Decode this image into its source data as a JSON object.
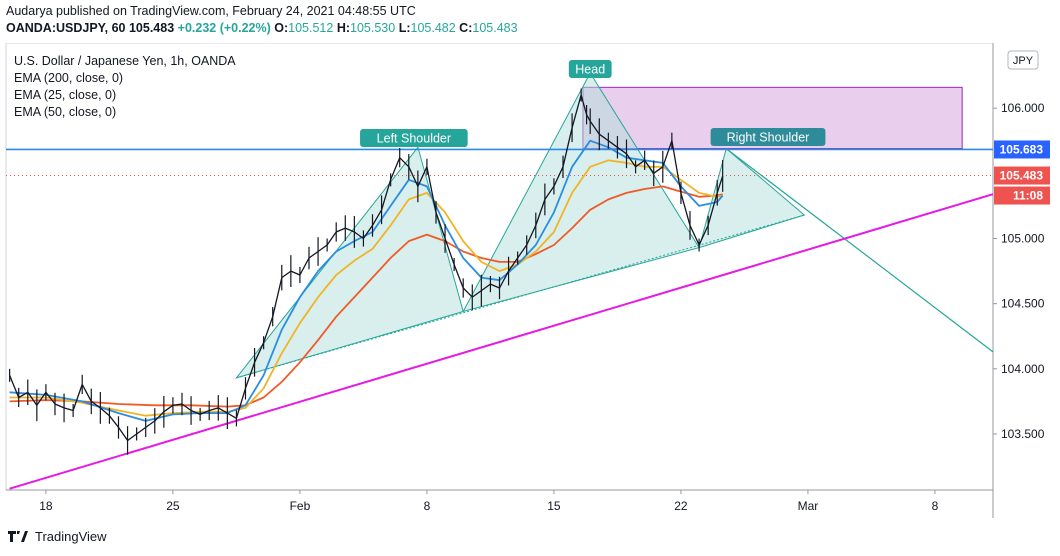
{
  "header": {
    "line1": "Audarya published on TradingView.com, February 24, 2021 04:48:55 UTC",
    "symbol": "OANDA:USDJPY, 60",
    "last": "105.483",
    "change": "+0.232 (+0.22%)",
    "open_label": "O:",
    "open": "105.512",
    "high_label": "H:",
    "high": "105.530",
    "low_label": "L:",
    "low": "105.482",
    "close_label": "C:",
    "close": "105.483"
  },
  "legend": {
    "title": "U.S. Dollar / Japanese Yen, 1h, OANDA",
    "ema200": "EMA (200, close, 0)",
    "ema25": "EMA (25, close, 0)",
    "ema50": "EMA (50, close, 0)"
  },
  "currency_badge": "JPY",
  "footer": {
    "brand": "TradingView"
  },
  "colors": {
    "ema200": "#f05a28",
    "ema25": "#2a8de0",
    "ema50": "#f0b429",
    "trendline": "#e619e6",
    "neckline": "#2b8ae6",
    "pattern_fill": "#b2dfdb",
    "pattern_line": "#26a69a",
    "zone_fill": "#e1bee7",
    "zone_line": "#9c27b0",
    "label_bg": "#26a69a",
    "label_bg_right": "#2e8b9a",
    "price_blue": "#2962ff",
    "price_red": "#ef5350"
  },
  "chart_data": {
    "type": "line",
    "title": "U.S. Dollar / Japanese Yen, 1h, OANDA",
    "xlabel": "",
    "ylabel": "",
    "x_unit": "days since Jan 14, 2021",
    "x_ticks": [
      {
        "label": "18",
        "x": 4
      },
      {
        "label": "25",
        "x": 11
      },
      {
        "label": "Feb",
        "x": 18
      },
      {
        "label": "8",
        "x": 25
      },
      {
        "label": "15",
        "x": 32
      },
      {
        "label": "22",
        "x": 39
      },
      {
        "label": "Mar",
        "x": 46
      },
      {
        "label": "8",
        "x": 53
      }
    ],
    "xlim": [
      1.8,
      56.2
    ],
    "y_ticks": [
      "103.500",
      "104.000",
      "104.500",
      "105.000",
      "106.000"
    ],
    "ylim": [
      103.07,
      106.5
    ],
    "price_labels": [
      {
        "value": "105.683",
        "kind": "level"
      },
      {
        "value": "105.483",
        "kind": "last"
      },
      {
        "value": "11:08",
        "kind": "countdown"
      }
    ],
    "price_path": [
      [
        2.0,
        103.95
      ],
      [
        2.5,
        103.78
      ],
      [
        3.0,
        103.82
      ],
      [
        3.5,
        103.72
      ],
      [
        4.0,
        103.82
      ],
      [
        4.5,
        103.73
      ],
      [
        5.0,
        103.7
      ],
      [
        5.5,
        103.68
      ],
      [
        6.0,
        103.88
      ],
      [
        6.5,
        103.75
      ],
      [
        7.0,
        103.7
      ],
      [
        7.5,
        103.64
      ],
      [
        8.0,
        103.55
      ],
      [
        8.5,
        103.45
      ],
      [
        9.0,
        103.5
      ],
      [
        9.5,
        103.55
      ],
      [
        10.0,
        103.6
      ],
      [
        10.5,
        103.67
      ],
      [
        11.0,
        103.72
      ],
      [
        11.5,
        103.73
      ],
      [
        12.0,
        103.68
      ],
      [
        12.5,
        103.65
      ],
      [
        13.0,
        103.68
      ],
      [
        13.5,
        103.7
      ],
      [
        14.0,
        103.66
      ],
      [
        14.5,
        103.62
      ],
      [
        15.0,
        103.85
      ],
      [
        15.5,
        104.05
      ],
      [
        16.0,
        104.2
      ],
      [
        16.5,
        104.4
      ],
      [
        17.0,
        104.7
      ],
      [
        17.5,
        104.75
      ],
      [
        18.0,
        104.72
      ],
      [
        18.5,
        104.85
      ],
      [
        19.0,
        104.9
      ],
      [
        19.5,
        104.95
      ],
      [
        20.0,
        105.05
      ],
      [
        20.5,
        105.08
      ],
      [
        21.0,
        105.05
      ],
      [
        21.5,
        105.0
      ],
      [
        22.0,
        105.1
      ],
      [
        22.5,
        105.22
      ],
      [
        23.0,
        105.45
      ],
      [
        23.5,
        105.62
      ],
      [
        24.0,
        105.55
      ],
      [
        24.5,
        105.4
      ],
      [
        25.0,
        105.55
      ],
      [
        25.5,
        105.2
      ],
      [
        26.0,
        105.0
      ],
      [
        26.5,
        104.8
      ],
      [
        27.0,
        104.62
      ],
      [
        27.5,
        104.55
      ],
      [
        28.0,
        104.6
      ],
      [
        28.5,
        104.65
      ],
      [
        29.0,
        104.62
      ],
      [
        29.5,
        104.75
      ],
      [
        30.0,
        104.85
      ],
      [
        30.5,
        104.95
      ],
      [
        31.0,
        105.1
      ],
      [
        31.5,
        105.3
      ],
      [
        32.0,
        105.4
      ],
      [
        32.5,
        105.55
      ],
      [
        33.0,
        105.85
      ],
      [
        33.5,
        106.1
      ],
      [
        33.8,
        105.95
      ],
      [
        34.0,
        105.9
      ],
      [
        34.5,
        105.8
      ],
      [
        35.0,
        105.75
      ],
      [
        35.5,
        105.7
      ],
      [
        36.0,
        105.65
      ],
      [
        36.5,
        105.55
      ],
      [
        37.0,
        105.6
      ],
      [
        37.5,
        105.5
      ],
      [
        38.0,
        105.55
      ],
      [
        38.5,
        105.75
      ],
      [
        39.0,
        105.35
      ],
      [
        39.5,
        105.1
      ],
      [
        40.0,
        104.95
      ],
      [
        40.5,
        105.1
      ],
      [
        41.0,
        105.35
      ],
      [
        41.3,
        105.48
      ]
    ],
    "series": [
      {
        "name": "EMA (25, close, 0)",
        "values": [
          [
            2,
            103.82
          ],
          [
            4,
            103.8
          ],
          [
            6,
            103.75
          ],
          [
            8,
            103.66
          ],
          [
            9.5,
            103.6
          ],
          [
            11,
            103.65
          ],
          [
            12.5,
            103.66
          ],
          [
            14,
            103.66
          ],
          [
            15,
            103.72
          ],
          [
            16,
            103.95
          ],
          [
            17,
            104.3
          ],
          [
            18,
            104.55
          ],
          [
            19,
            104.75
          ],
          [
            20,
            104.9
          ],
          [
            21,
            104.98
          ],
          [
            22,
            105.05
          ],
          [
            23,
            105.25
          ],
          [
            24,
            105.45
          ],
          [
            25,
            105.4
          ],
          [
            26,
            105.1
          ],
          [
            27,
            104.85
          ],
          [
            28,
            104.7
          ],
          [
            29,
            104.68
          ],
          [
            30,
            104.8
          ],
          [
            31,
            104.95
          ],
          [
            32,
            105.2
          ],
          [
            33,
            105.55
          ],
          [
            34,
            105.75
          ],
          [
            35,
            105.7
          ],
          [
            36,
            105.62
          ],
          [
            37,
            105.6
          ],
          [
            38,
            105.58
          ],
          [
            39,
            105.4
          ],
          [
            40,
            105.25
          ],
          [
            41,
            105.28
          ],
          [
            41.3,
            105.33
          ]
        ]
      },
      {
        "name": "EMA (50, close, 0)",
        "values": [
          [
            2,
            103.78
          ],
          [
            4,
            103.78
          ],
          [
            6,
            103.74
          ],
          [
            8,
            103.68
          ],
          [
            9.5,
            103.64
          ],
          [
            11,
            103.66
          ],
          [
            12.5,
            103.67
          ],
          [
            14,
            103.67
          ],
          [
            15,
            103.7
          ],
          [
            16,
            103.85
          ],
          [
            17,
            104.12
          ],
          [
            18,
            104.35
          ],
          [
            19,
            104.55
          ],
          [
            20,
            104.72
          ],
          [
            21,
            104.83
          ],
          [
            22,
            104.92
          ],
          [
            23,
            105.1
          ],
          [
            24,
            105.3
          ],
          [
            25,
            105.35
          ],
          [
            26,
            105.2
          ],
          [
            27,
            104.98
          ],
          [
            28,
            104.82
          ],
          [
            29,
            104.75
          ],
          [
            30,
            104.8
          ],
          [
            31,
            104.9
          ],
          [
            32,
            105.05
          ],
          [
            33,
            105.35
          ],
          [
            34,
            105.55
          ],
          [
            35,
            105.6
          ],
          [
            36,
            105.58
          ],
          [
            37,
            105.55
          ],
          [
            38,
            105.55
          ],
          [
            39,
            105.45
          ],
          [
            40,
            105.35
          ],
          [
            41,
            105.32
          ],
          [
            41.3,
            105.33
          ]
        ]
      },
      {
        "name": "EMA (200, close, 0)",
        "values": [
          [
            2,
            103.75
          ],
          [
            4,
            103.76
          ],
          [
            6,
            103.75
          ],
          [
            8,
            103.73
          ],
          [
            10,
            103.72
          ],
          [
            12,
            103.72
          ],
          [
            14,
            103.71
          ],
          [
            15,
            103.72
          ],
          [
            16,
            103.78
          ],
          [
            17,
            103.9
          ],
          [
            18,
            104.05
          ],
          [
            19,
            104.22
          ],
          [
            20,
            104.4
          ],
          [
            21,
            104.55
          ],
          [
            22,
            104.7
          ],
          [
            23,
            104.85
          ],
          [
            24,
            104.98
          ],
          [
            25,
            105.03
          ],
          [
            26,
            104.98
          ],
          [
            27,
            104.9
          ],
          [
            28,
            104.85
          ],
          [
            29,
            104.82
          ],
          [
            30,
            104.82
          ],
          [
            31,
            104.88
          ],
          [
            32,
            104.95
          ],
          [
            33,
            105.08
          ],
          [
            34,
            105.22
          ],
          [
            35,
            105.3
          ],
          [
            36,
            105.35
          ],
          [
            37,
            105.38
          ],
          [
            38,
            105.4
          ],
          [
            39,
            105.36
          ],
          [
            40,
            105.32
          ],
          [
            41,
            105.33
          ],
          [
            41.3,
            105.34
          ]
        ]
      }
    ],
    "neckline": 105.683,
    "last_price": 105.483,
    "resistance_zone": {
      "x": [
        33.6,
        54.5
      ],
      "y": [
        105.69,
        106.16
      ]
    },
    "support_trendline": [
      [
        2.0,
        103.08
      ],
      [
        56.2,
        105.34
      ]
    ],
    "pattern": {
      "left_shoulder": {
        "label": "Left Shoulder",
        "base": [
          [
            14.5,
            103.93
          ],
          [
            27.0,
            104.44
          ]
        ],
        "peak": [
          24.5,
          105.7
        ]
      },
      "head": {
        "label": "Head",
        "base": [
          [
            27.0,
            104.44
          ],
          [
            40.0,
            104.93
          ]
        ],
        "peak": [
          34.0,
          106.27
        ]
      },
      "right_shoulder": {
        "label": "Right Shoulder",
        "base": [
          [
            40.0,
            104.93
          ],
          [
            45.8,
            105.18
          ]
        ],
        "peak": [
          41.5,
          105.69
        ]
      },
      "projection": [
        [
          41.5,
          105.69
        ],
        [
          56.2,
          104.13
        ]
      ]
    }
  }
}
